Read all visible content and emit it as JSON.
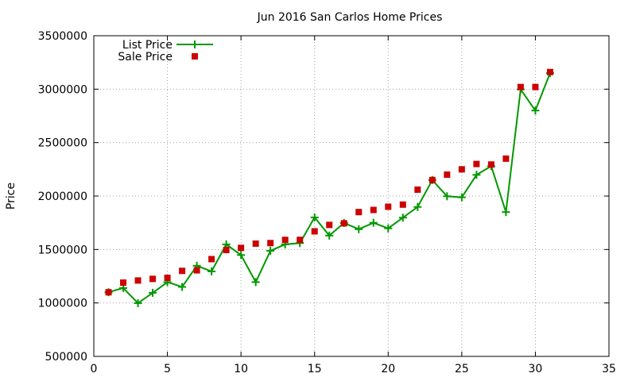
{
  "chart_data": {
    "type": "line",
    "title": "Jun 2016 San Carlos Home Prices",
    "xlabel": "",
    "ylabel": "Price",
    "xlim": [
      0,
      35
    ],
    "ylim": [
      500000,
      3500000
    ],
    "xticks": [
      0,
      5,
      10,
      15,
      20,
      25,
      30,
      35
    ],
    "yticks": [
      500000,
      1000000,
      1500000,
      2000000,
      2500000,
      3000000,
      3500000
    ],
    "grid": true,
    "legend_position": "top-left",
    "series": [
      {
        "name": "List Price",
        "style": "line-with-plus-markers",
        "color": "#009900",
        "x": [
          1,
          2,
          3,
          4,
          5,
          6,
          7,
          8,
          9,
          10,
          11,
          12,
          13,
          14,
          15,
          16,
          17,
          18,
          19,
          20,
          21,
          22,
          23,
          24,
          25,
          26,
          27,
          28,
          29,
          30,
          31
        ],
        "values": [
          1100000,
          1140000,
          998000,
          1095000,
          1195000,
          1150000,
          1348000,
          1295000,
          1548000,
          1448000,
          1195000,
          1488000,
          1548000,
          1560000,
          1800000,
          1630000,
          1748000,
          1690000,
          1750000,
          1698000,
          1798000,
          1898000,
          2150000,
          1998000,
          1988000,
          2198000,
          2280000,
          1850000,
          2998000,
          2800000,
          3150000
        ]
      },
      {
        "name": "Sale Price",
        "style": "square-markers",
        "color": "#cc0000",
        "x": [
          1,
          2,
          3,
          4,
          5,
          6,
          7,
          8,
          9,
          10,
          11,
          12,
          13,
          14,
          15,
          16,
          17,
          18,
          19,
          20,
          21,
          22,
          23,
          24,
          25,
          26,
          27,
          28,
          29,
          30,
          31
        ],
        "values": [
          1100000,
          1190000,
          1210000,
          1225000,
          1235000,
          1300000,
          1305000,
          1410000,
          1495000,
          1515000,
          1555000,
          1560000,
          1590000,
          1590000,
          1670000,
          1730000,
          1745000,
          1850000,
          1870000,
          1900000,
          1920000,
          2060000,
          2150000,
          2200000,
          2250000,
          2300000,
          2295000,
          2350000,
          3020000,
          3020000,
          3160000
        ]
      }
    ]
  }
}
